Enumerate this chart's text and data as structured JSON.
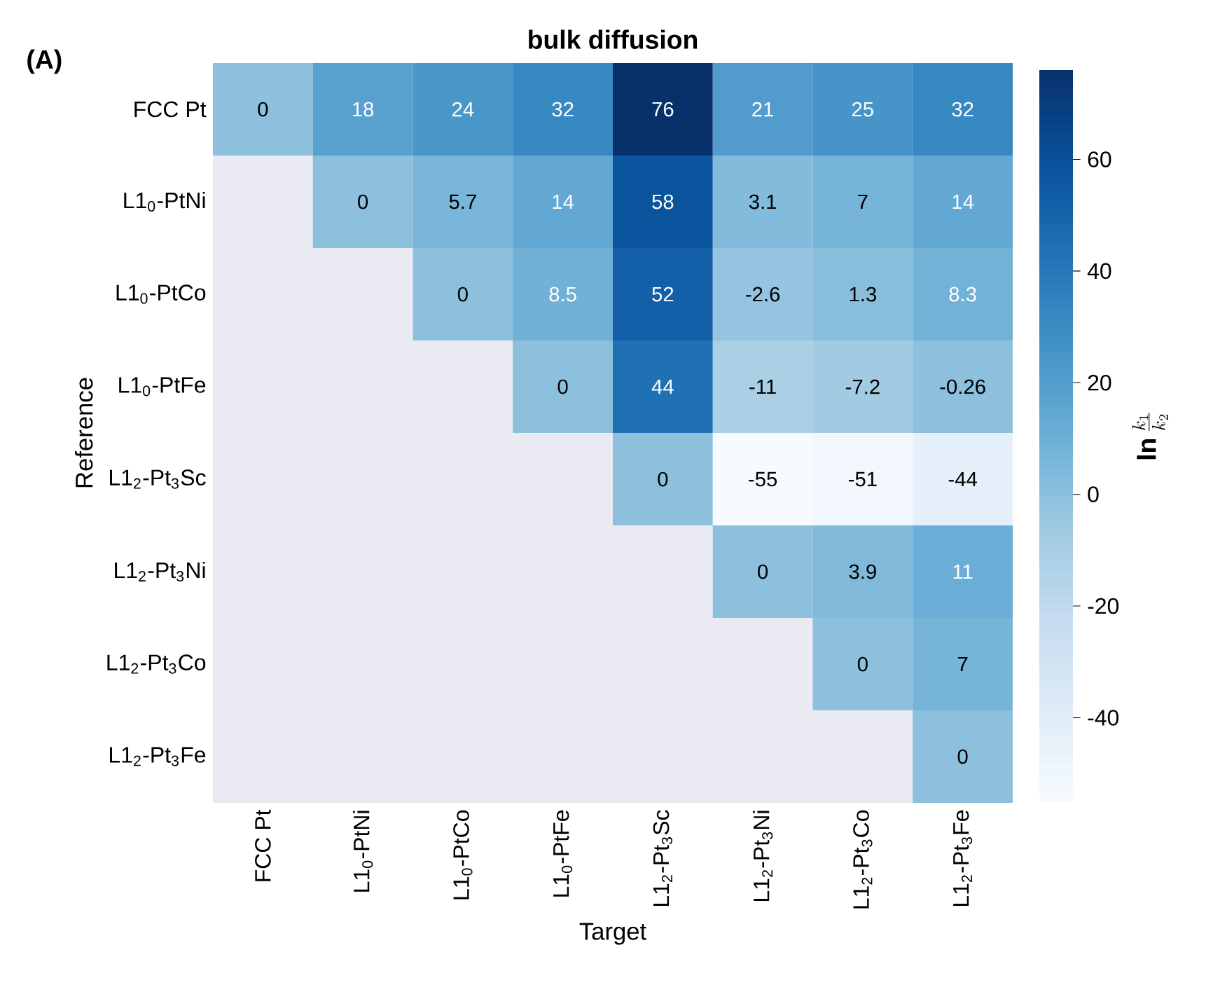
{
  "chart_data": {
    "type": "heatmap",
    "title": "bulk diffusion",
    "xlabel": "Target",
    "ylabel": "Reference",
    "clabel": "\\mathbf{ln}\\,\\frac{k_1}{k_2}",
    "annotations": [
      "(A)"
    ],
    "categories": [
      "FCC Pt",
      "L1$_{0}$-PtNi",
      "L1$_{0}$-PtCo",
      "L1$_{0}$-PtFe",
      "L1$_{2}$-Pt$_{3}$Sc",
      "L1$_{2}$-Pt$_{3}$Ni",
      "L1$_{2}$-Pt$_{3}$Co",
      "L1$_{2}$-Pt$_{3}$Fe"
    ],
    "y_categories": [
      "FCC Pt",
      "L1$_{0}$-PtNi",
      "L1$_{0}$-PtCo",
      "L1$_{0}$-PtFe",
      "L1$_{2}$-Pt$_{3}$Sc",
      "L1$_{2}$-Pt$_{3}$Ni",
      "L1$_{2}$-Pt$_{3}$Co",
      "L1$_{2}$-Pt$_{3}$Fe"
    ],
    "cells": [
      [
        0,
        18,
        24,
        32,
        76,
        21,
        25,
        32
      ],
      [
        null,
        0,
        5.7,
        14,
        58,
        3.1,
        7,
        14
      ],
      [
        null,
        null,
        0,
        8.5,
        52,
        -2.6,
        1.3,
        8.3
      ],
      [
        null,
        null,
        null,
        0,
        44,
        -11,
        -7.2,
        -0.26
      ],
      [
        null,
        null,
        null,
        null,
        0,
        -55,
        -51,
        -44
      ],
      [
        null,
        null,
        null,
        null,
        null,
        0,
        3.9,
        11
      ],
      [
        null,
        null,
        null,
        null,
        null,
        null,
        0,
        7
      ],
      [
        null,
        null,
        null,
        null,
        null,
        null,
        null,
        0
      ]
    ],
    "data_labels": true,
    "clim": [
      -55,
      76
    ],
    "cticks": [
      -40,
      -20,
      0,
      20,
      40,
      60
    ]
  }
}
